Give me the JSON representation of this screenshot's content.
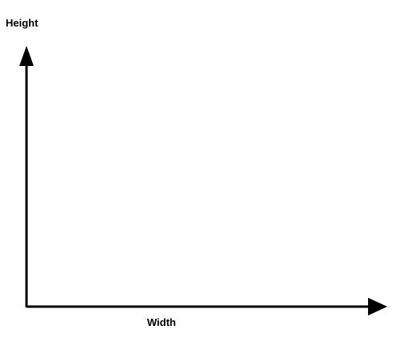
{
  "diagram": {
    "y_axis_label": "Height",
    "x_axis_label": "Width",
    "axis_color": "#000000",
    "background_color": "#ffffff"
  }
}
